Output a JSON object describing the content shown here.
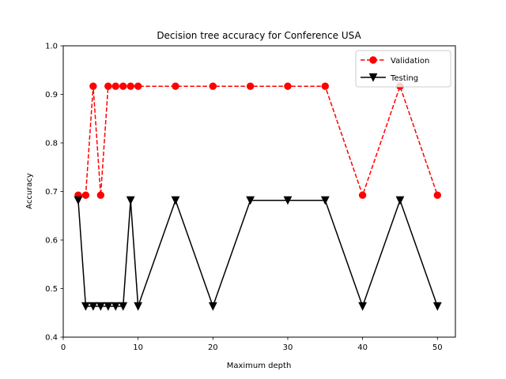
{
  "chart_data": {
    "type": "line",
    "title": "Decision tree accuracy for Conference USA",
    "xlabel": "Maximum depth",
    "ylabel": "Accuracy",
    "xlim": [
      0,
      52.4
    ],
    "ylim": [
      0.4,
      1.0
    ],
    "x_ticks": [
      0,
      10,
      20,
      30,
      40,
      50
    ],
    "y_ticks": [
      0.4,
      0.5,
      0.6,
      0.7,
      0.8,
      0.9,
      1.0
    ],
    "x_tick_labels": [
      "0",
      "10",
      "20",
      "30",
      "40",
      "50"
    ],
    "y_tick_labels": [
      "0.4",
      "0.5",
      "0.6",
      "0.7",
      "0.8",
      "0.9",
      "1.0"
    ],
    "legend_position": "top-right",
    "grid": false,
    "x": [
      2,
      3,
      4,
      5,
      6,
      7,
      8,
      9,
      10,
      15,
      20,
      25,
      30,
      35,
      40,
      45,
      50
    ],
    "series": [
      {
        "name": "Validation",
        "color": "#ff0000",
        "line_style": "dashed",
        "marker": "circle",
        "values": [
          0.6923,
          0.6923,
          0.9167,
          0.6923,
          0.9167,
          0.9167,
          0.9167,
          0.9167,
          0.9167,
          0.9167,
          0.9167,
          0.9167,
          0.9167,
          0.9167,
          0.6923,
          0.9167,
          0.6923
        ]
      },
      {
        "name": "Testing",
        "color": "#000000",
        "line_style": "solid",
        "marker": "triangle-down",
        "values": [
          0.6818,
          0.4636,
          0.4636,
          0.4636,
          0.4636,
          0.4636,
          0.4636,
          0.6818,
          0.4636,
          0.6818,
          0.4636,
          0.6818,
          0.6818,
          0.6818,
          0.4636,
          0.6818,
          0.4636
        ]
      }
    ]
  }
}
